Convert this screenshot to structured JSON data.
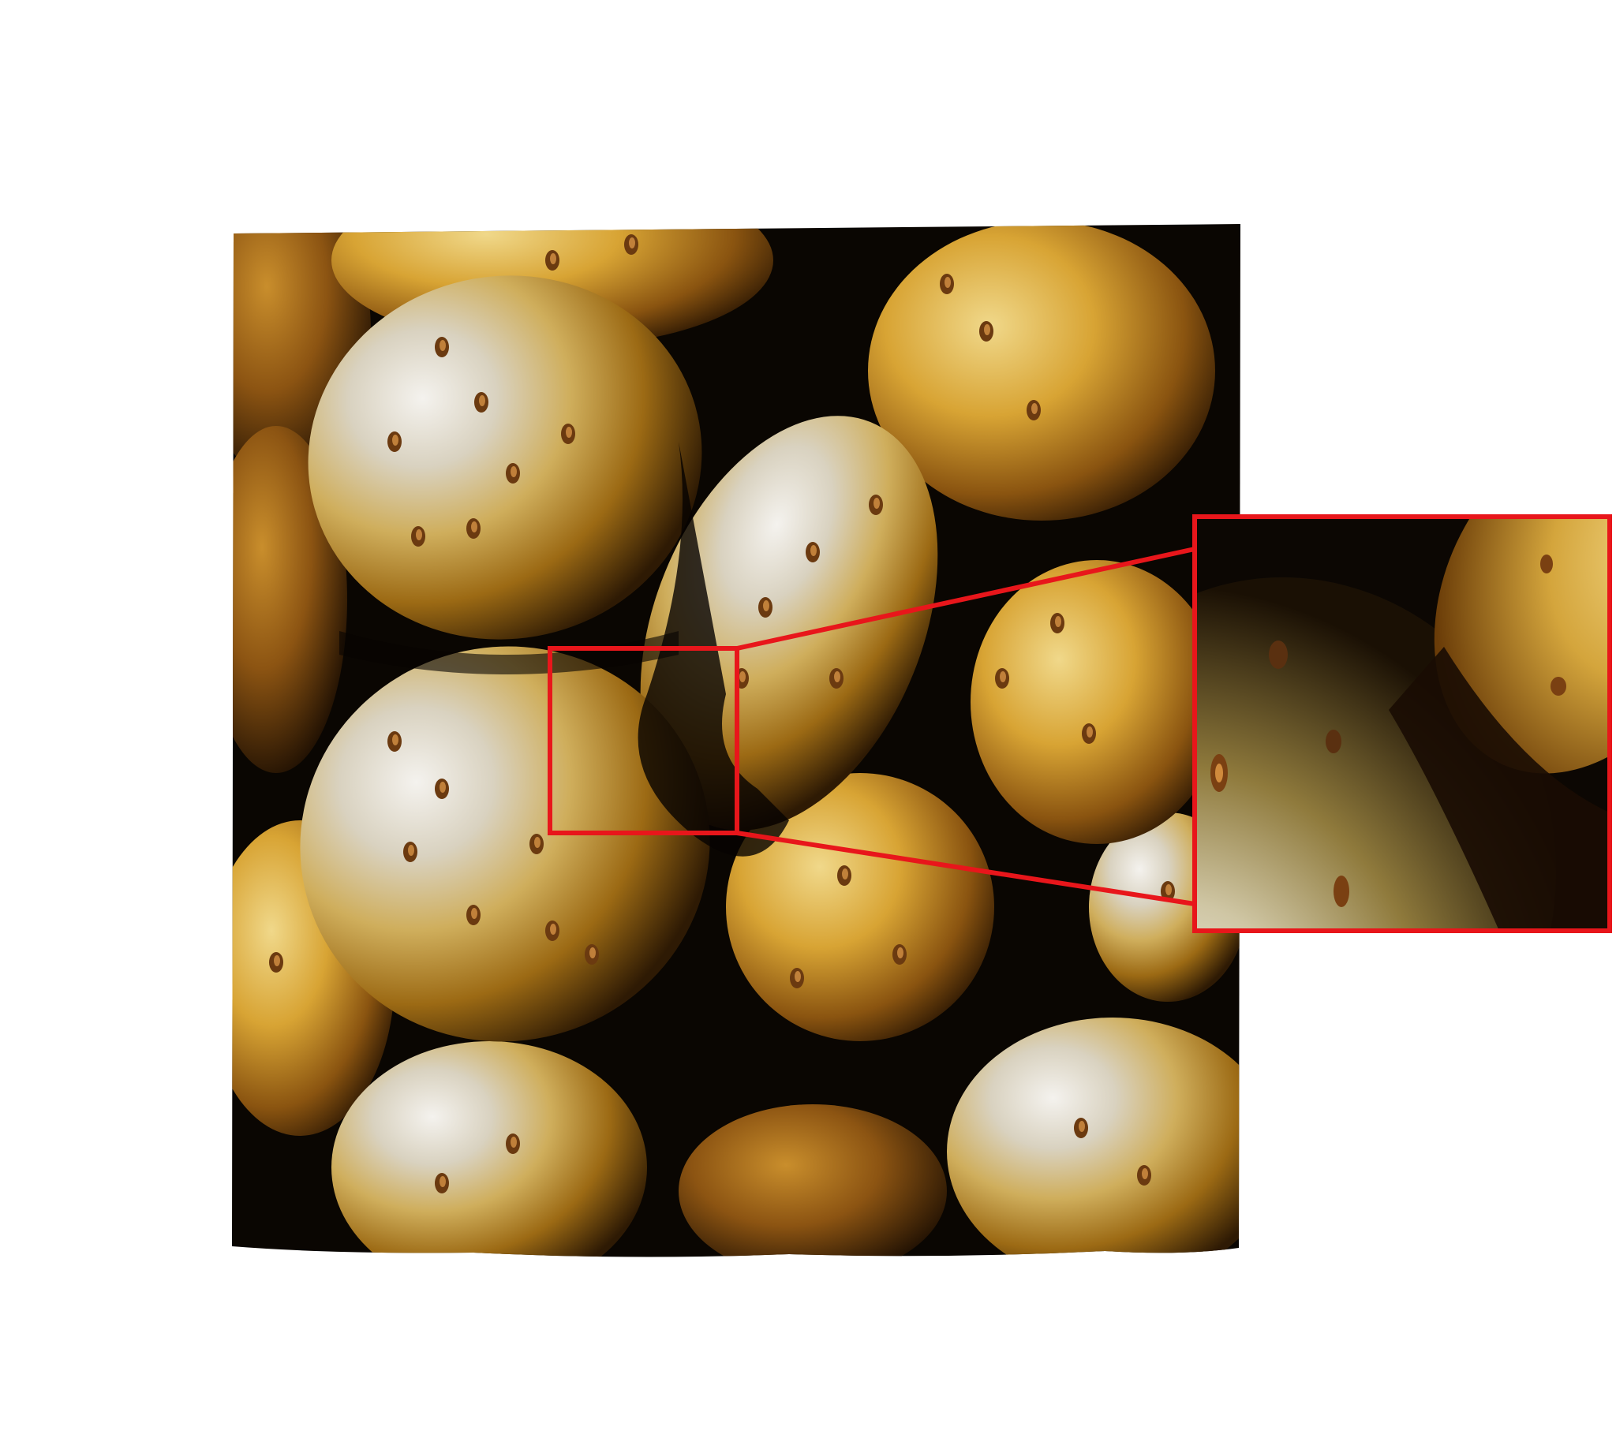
{
  "figure": {
    "subject": "potatoes",
    "accent": "#e8161b",
    "background": "#ffffff",
    "shadow_color": "#0a0602"
  }
}
